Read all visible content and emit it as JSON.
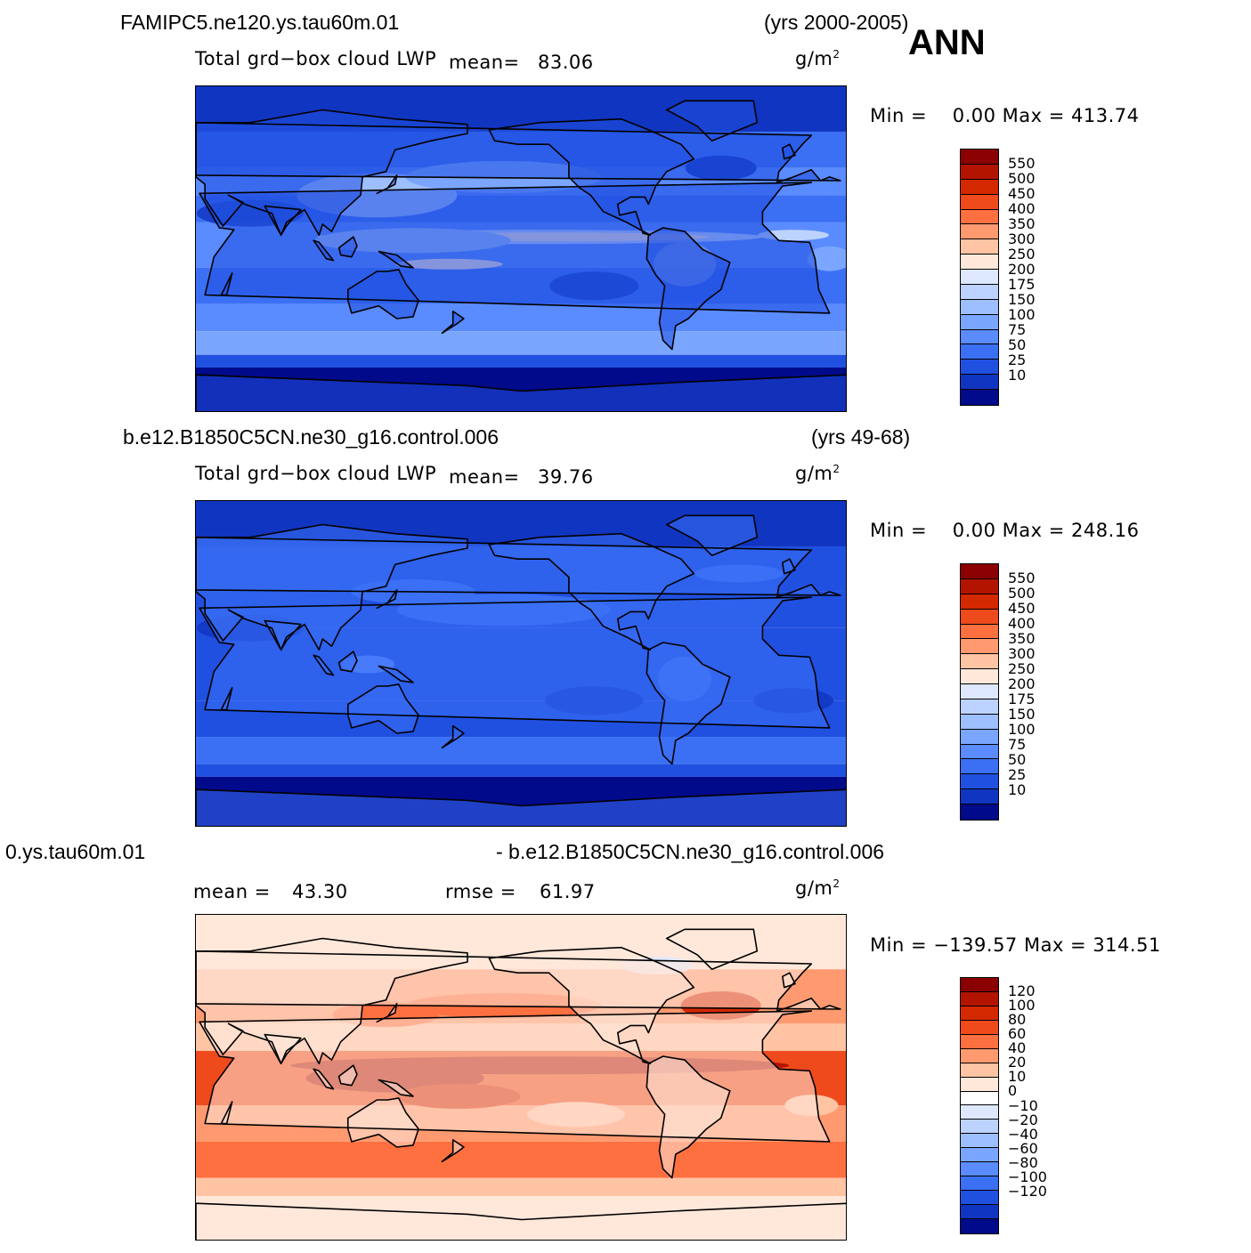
{
  "season": "ANN",
  "unit_label": "g/m",
  "unit_exp": "2",
  "panels": [
    {
      "case_name": "FAMIPC5.ne120.ys.tau60m.01",
      "years": "(yrs 2000-2005)",
      "var_label": "Total grd−box cloud LWP",
      "stat1_label": "mean=",
      "stat1_value": "83.06",
      "minmax": "Min =    0.00 Max = 413.74",
      "colorbar": {
        "colors": [
          "#8b0000",
          "#b31400",
          "#d42800",
          "#ee4a1c",
          "#ff7040",
          "#ff9a70",
          "#ffc4a4",
          "#ffe8da",
          "#dde8ff",
          "#bdd3ff",
          "#9ebfff",
          "#7aa6ff",
          "#5a8bff",
          "#3b70f5",
          "#2050e0",
          "#1035c0",
          "#000a8a"
        ],
        "labels": [
          "550",
          "500",
          "450",
          "400",
          "350",
          "300",
          "250",
          "200",
          "175",
          "150",
          "100",
          "75",
          "50",
          "25",
          "10"
        ]
      }
    },
    {
      "case_name": "b.e12.B1850C5CN.ne30_g16.control.006",
      "years": "(yrs 49-68)",
      "var_label": "Total grd−box cloud LWP",
      "stat1_label": "mean=",
      "stat1_value": "39.76",
      "minmax": "Min =    0.00 Max = 248.16",
      "colorbar": {
        "colors": [
          "#8b0000",
          "#b31400",
          "#d42800",
          "#ee4a1c",
          "#ff7040",
          "#ff9a70",
          "#ffc4a4",
          "#ffe8da",
          "#dde8ff",
          "#bdd3ff",
          "#9ebfff",
          "#7aa6ff",
          "#5a8bff",
          "#3b70f5",
          "#2050e0",
          "#1035c0",
          "#000a8a"
        ],
        "labels": [
          "550",
          "500",
          "450",
          "400",
          "350",
          "300",
          "250",
          "200",
          "175",
          "150",
          "100",
          "75",
          "50",
          "25",
          "10"
        ]
      }
    },
    {
      "case_name_left": "0.ys.tau60m.01",
      "case_name_right": "- b.e12.B1850C5CN.ne30_g16.control.006",
      "stat1_label": "mean =",
      "stat1_value": "43.30",
      "stat2_label": "rmse =",
      "stat2_value": "61.97",
      "minmax": "Min = −139.57 Max = 314.51",
      "colorbar": {
        "colors": [
          "#8b0000",
          "#b31400",
          "#d42800",
          "#ee4a1c",
          "#ff7040",
          "#ff9a70",
          "#ffc4a4",
          "#ffe8da",
          "#ffffff",
          "#dde8ff",
          "#bdd3ff",
          "#9ebfff",
          "#7aa6ff",
          "#5a8bff",
          "#3b70f5",
          "#2050e0",
          "#1035c0",
          "#000a8a"
        ],
        "labels": [
          "120",
          "100",
          "80",
          "60",
          "40",
          "20",
          "10",
          "0",
          "−10",
          "−20",
          "−40",
          "−60",
          "−80",
          "−100",
          "−120"
        ]
      }
    }
  ],
  "chart_data": [
    {
      "type": "heatmap",
      "title": "FAMIPC5.ne120.ys.tau60m.01",
      "subtitle": "Total grd−box cloud LWP",
      "units": "g/m2",
      "mean": 83.06,
      "min": 0.0,
      "max": 413.74,
      "years": "2000-2005",
      "season": "ANN",
      "contour_levels": [
        10,
        25,
        50,
        75,
        100,
        150,
        175,
        200,
        250,
        300,
        350,
        400,
        450,
        500,
        550
      ]
    },
    {
      "type": "heatmap",
      "title": "b.e12.B1850C5CN.ne30_g16.control.006",
      "subtitle": "Total grd−box cloud LWP",
      "units": "g/m2",
      "mean": 39.76,
      "min": 0.0,
      "max": 248.16,
      "years": "49-68",
      "season": "ANN",
      "contour_levels": [
        10,
        25,
        50,
        75,
        100,
        150,
        175,
        200,
        250,
        300,
        350,
        400,
        450,
        500,
        550
      ]
    },
    {
      "type": "heatmap",
      "title": "0.ys.tau60m.01 - b.e12.B1850C5CN.ne30_g16.control.006",
      "units": "g/m2",
      "mean": 43.3,
      "rmse": 61.97,
      "min": -139.57,
      "max": 314.51,
      "season": "ANN",
      "contour_levels": [
        -120,
        -100,
        -80,
        -60,
        -40,
        -20,
        -10,
        0,
        10,
        20,
        40,
        60,
        80,
        100,
        120
      ]
    }
  ]
}
